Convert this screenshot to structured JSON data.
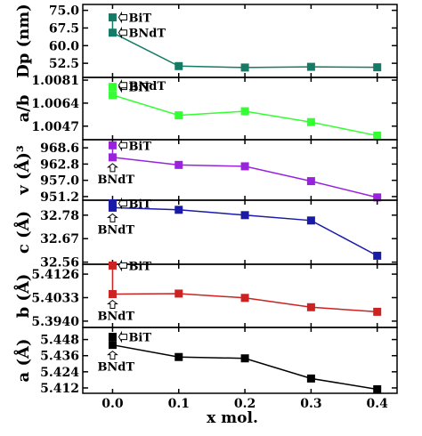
{
  "chart_data": [
    {
      "type": "line",
      "ylabel": "Dp (nm)",
      "yticks": [
        52.5,
        60.0,
        67.5,
        75.0
      ],
      "ylim": [
        46.5,
        77.5
      ],
      "color": "#157a66",
      "x": [
        0.0,
        0.1,
        0.2,
        0.3,
        0.4
      ],
      "values": [
        65.5,
        51.3,
        50.7,
        51.0,
        50.8
      ],
      "bit_value": 72.0,
      "bit_label": "BiT",
      "bndt_label": "BNdT"
    },
    {
      "type": "line",
      "ylabel": "a/b",
      "yticks": [
        1.0047,
        1.0064,
        1.0081
      ],
      "ylim": [
        1.0037,
        1.0083
      ],
      "color": "#33ff33",
      "x": [
        0.0,
        0.1,
        0.2,
        0.3,
        0.4
      ],
      "values": [
        1.007,
        1.0055,
        1.0058,
        1.005,
        1.004
      ],
      "bit_value": 1.0076,
      "bit_label": "BiT",
      "bndt_label": "BNdT"
    },
    {
      "type": "line",
      "ylabel": "v (Å)³",
      "yticks": [
        951.2,
        957.0,
        962.8,
        968.6
      ],
      "ylim": [
        949.9,
        971.5
      ],
      "color": "#9922dd",
      "x": [
        0.0,
        0.1,
        0.2,
        0.3,
        0.4
      ],
      "values": [
        965.2,
        962.5,
        962.0,
        956.7,
        950.9
      ],
      "bit_value": 969.5,
      "bit_label": "BiT",
      "bndt_label": "BNdT"
    },
    {
      "type": "line",
      "ylabel": "c (Å)",
      "yticks": [
        32.56,
        32.67,
        32.78
      ],
      "ylim": [
        32.55,
        32.85
      ],
      "color": "#1a1aa8",
      "x": [
        0.0,
        0.1,
        0.2,
        0.3,
        0.4
      ],
      "values": [
        32.815,
        32.805,
        32.78,
        32.755,
        32.59
      ],
      "bit_value": 32.835,
      "bit_label": "BiT",
      "bndt_label": "BNdT"
    },
    {
      "type": "line",
      "ylabel": "b (Å)",
      "yticks": [
        5.394,
        5.4033,
        5.4126
      ],
      "ylim": [
        5.3915,
        5.4165
      ],
      "color": "#cc2222",
      "x": [
        0.0,
        0.1,
        0.2,
        0.3,
        0.4
      ],
      "values": [
        5.4047,
        5.4049,
        5.4032,
        5.3995,
        5.3977
      ],
      "bit_value": 5.416,
      "bit_label": "BiT",
      "bndt_label": "BNdT"
    },
    {
      "type": "line",
      "ylabel": "a (Å)",
      "yticks": [
        5.412,
        5.424,
        5.436,
        5.448
      ],
      "ylim": [
        5.408,
        5.457
      ],
      "color": "#000000",
      "x": [
        0.0,
        0.1,
        0.2,
        0.3,
        0.4
      ],
      "values": [
        5.444,
        5.435,
        5.434,
        5.419,
        5.411
      ],
      "bit_value": 5.45,
      "bit_label": "BiT",
      "bndt_label": "BNdT"
    }
  ],
  "xaxis": {
    "label": "x mol.",
    "ticks": [
      "0.0",
      "0.1",
      "0.2",
      "0.3",
      "0.4"
    ],
    "xlim": [
      -0.045,
      0.43
    ]
  }
}
